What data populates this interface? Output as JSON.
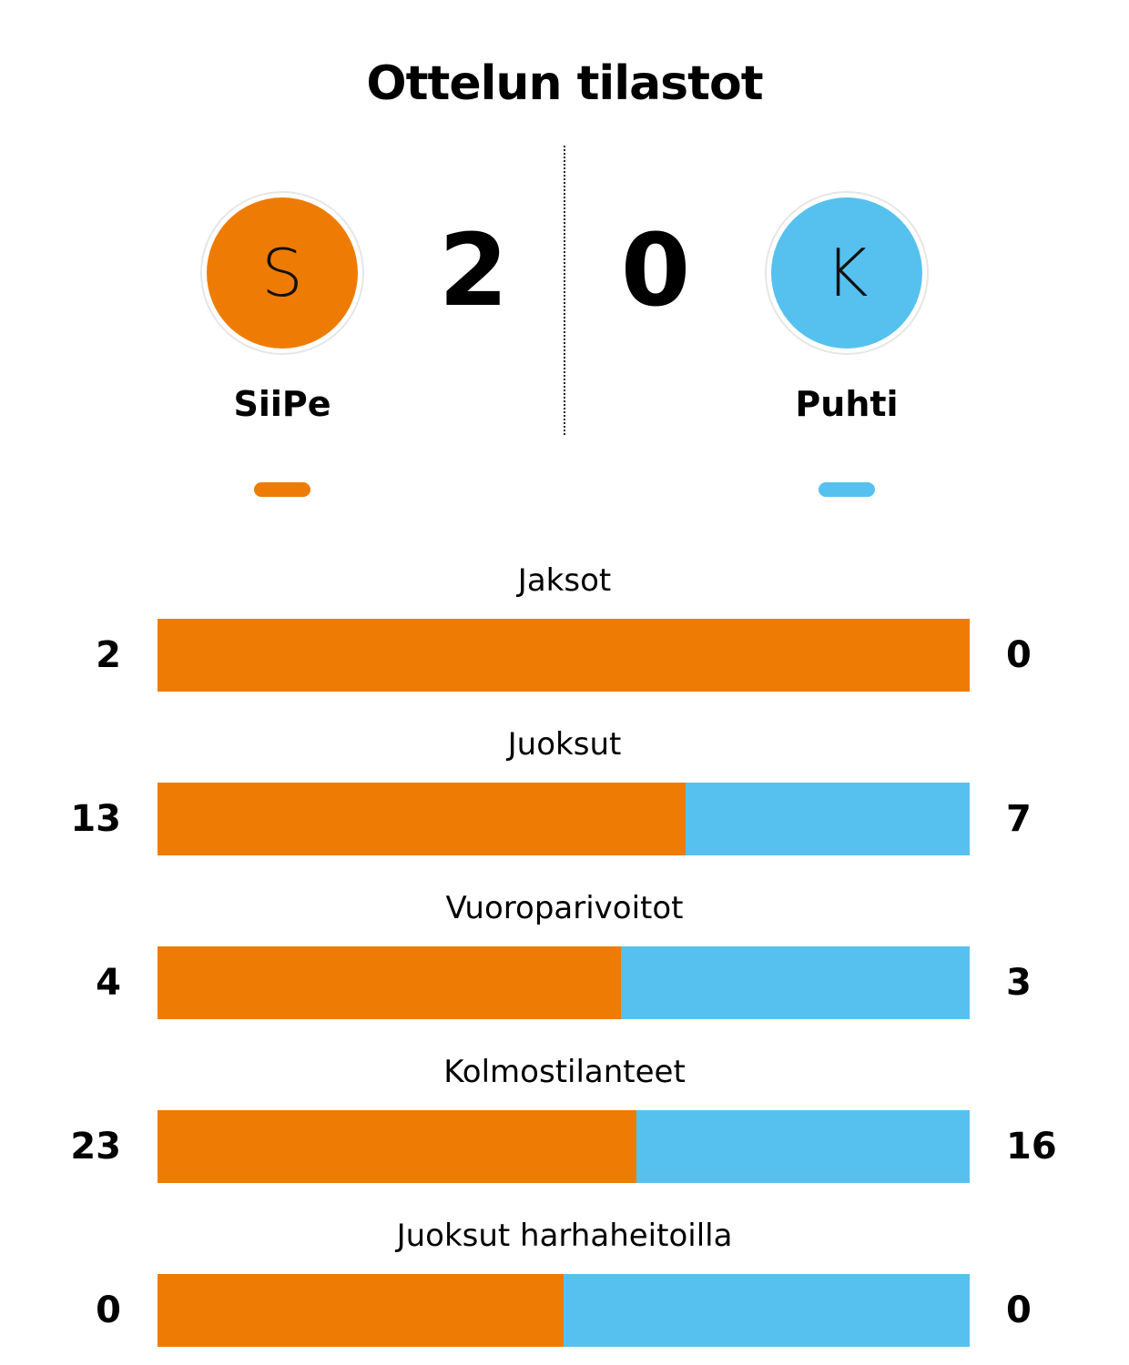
{
  "title": "Ottelun tilastot",
  "colors": {
    "home": "#EE7C04",
    "away": "#56C1EF"
  },
  "home": {
    "logo_letter": "S",
    "score": "2",
    "name": "SiiPe"
  },
  "away": {
    "logo_letter": "K",
    "score": "0",
    "name": "Puhti"
  },
  "stats": [
    {
      "label": "Jaksot",
      "home": "2",
      "away": "0",
      "home_share": 1.0
    },
    {
      "label": "Juoksut",
      "home": "13",
      "away": "7",
      "home_share": 0.65
    },
    {
      "label": "Vuoroparivoitot",
      "home": "4",
      "away": "3",
      "home_share": 0.571
    },
    {
      "label": "Kolmostilanteet",
      "home": "23",
      "away": "16",
      "home_share": 0.59
    },
    {
      "label": "Juoksut harhaheitoilla",
      "home": "0",
      "away": "0",
      "home_share": 0.5
    }
  ]
}
